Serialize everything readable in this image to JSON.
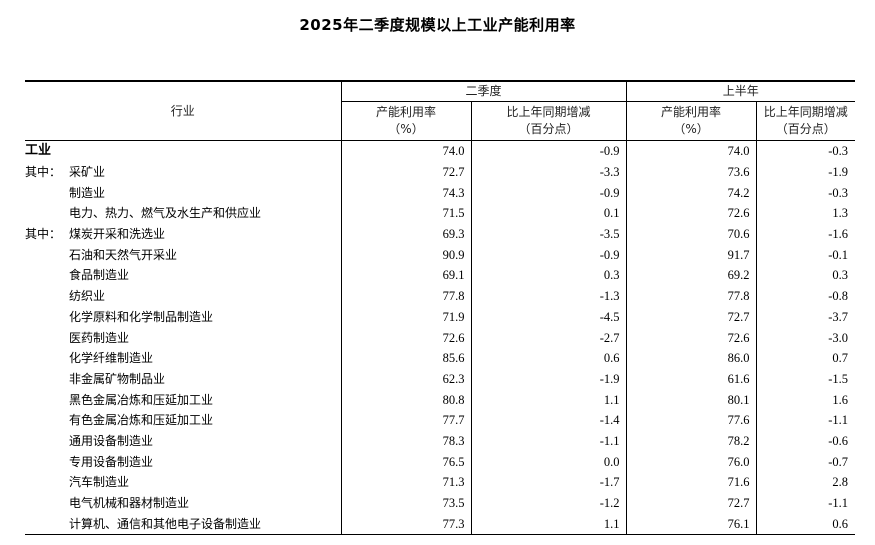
{
  "title": "2025年二季度规模以上工业产能利用率",
  "header": {
    "industry": "行业",
    "group_q2": "二季度",
    "group_h1": "上半年",
    "rate_label": "产能利用率",
    "rate_unit": "（%）",
    "change_label": "比上年同期增减",
    "change_unit": "（百分点）"
  },
  "rows": [
    {
      "prefix": "",
      "name": "工业",
      "q2_rate": "74.0",
      "q2_change": "-0.9",
      "h1_rate": "74.0",
      "h1_change": "-0.3"
    },
    {
      "prefix": "其中：",
      "name": "采矿业",
      "q2_rate": "72.7",
      "q2_change": "-3.3",
      "h1_rate": "73.6",
      "h1_change": "-1.9"
    },
    {
      "prefix": "",
      "name": "制造业",
      "q2_rate": "74.3",
      "q2_change": "-0.9",
      "h1_rate": "74.2",
      "h1_change": "-0.3"
    },
    {
      "prefix": "",
      "name": "电力、热力、燃气及水生产和供应业",
      "q2_rate": "71.5",
      "q2_change": "0.1",
      "h1_rate": "72.6",
      "h1_change": "1.3"
    },
    {
      "prefix": "其中：",
      "name": "煤炭开采和洗选业",
      "q2_rate": "69.3",
      "q2_change": "-3.5",
      "h1_rate": "70.6",
      "h1_change": "-1.6"
    },
    {
      "prefix": "",
      "name": "石油和天然气开采业",
      "q2_rate": "90.9",
      "q2_change": "-0.9",
      "h1_rate": "91.7",
      "h1_change": "-0.1"
    },
    {
      "prefix": "",
      "name": "食品制造业",
      "q2_rate": "69.1",
      "q2_change": "0.3",
      "h1_rate": "69.2",
      "h1_change": "0.3"
    },
    {
      "prefix": "",
      "name": "纺织业",
      "q2_rate": "77.8",
      "q2_change": "-1.3",
      "h1_rate": "77.8",
      "h1_change": "-0.8"
    },
    {
      "prefix": "",
      "name": "化学原料和化学制品制造业",
      "q2_rate": "71.9",
      "q2_change": "-4.5",
      "h1_rate": "72.7",
      "h1_change": "-3.7"
    },
    {
      "prefix": "",
      "name": "医药制造业",
      "q2_rate": "72.6",
      "q2_change": "-2.7",
      "h1_rate": "72.6",
      "h1_change": "-3.0"
    },
    {
      "prefix": "",
      "name": "化学纤维制造业",
      "q2_rate": "85.6",
      "q2_change": "0.6",
      "h1_rate": "86.0",
      "h1_change": "0.7"
    },
    {
      "prefix": "",
      "name": "非金属矿物制品业",
      "q2_rate": "62.3",
      "q2_change": "-1.9",
      "h1_rate": "61.6",
      "h1_change": "-1.5"
    },
    {
      "prefix": "",
      "name": "黑色金属冶炼和压延加工业",
      "q2_rate": "80.8",
      "q2_change": "1.1",
      "h1_rate": "80.1",
      "h1_change": "1.6"
    },
    {
      "prefix": "",
      "name": "有色金属冶炼和压延加工业",
      "q2_rate": "77.7",
      "q2_change": "-1.4",
      "h1_rate": "77.6",
      "h1_change": "-1.1"
    },
    {
      "prefix": "",
      "name": "通用设备制造业",
      "q2_rate": "78.3",
      "q2_change": "-1.1",
      "h1_rate": "78.2",
      "h1_change": "-0.6"
    },
    {
      "prefix": "",
      "name": "专用设备制造业",
      "q2_rate": "76.5",
      "q2_change": "0.0",
      "h1_rate": "76.0",
      "h1_change": "-0.7"
    },
    {
      "prefix": "",
      "name": "汽车制造业",
      "q2_rate": "71.3",
      "q2_change": "-1.7",
      "h1_rate": "71.6",
      "h1_change": "2.8"
    },
    {
      "prefix": "",
      "name": "电气机械和器材制造业",
      "q2_rate": "73.5",
      "q2_change": "-1.2",
      "h1_rate": "72.7",
      "h1_change": "-1.1"
    },
    {
      "prefix": "",
      "name": "计算机、通信和其他电子设备制造业",
      "q2_rate": "77.3",
      "q2_change": "1.1",
      "h1_rate": "76.1",
      "h1_change": "0.6"
    }
  ]
}
